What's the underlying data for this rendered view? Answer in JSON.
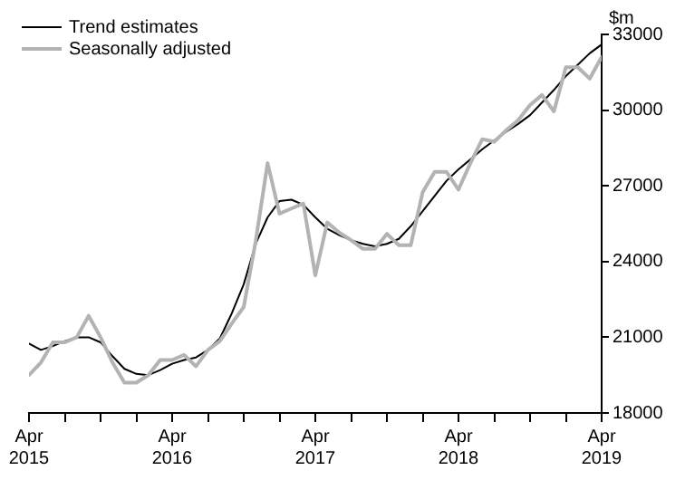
{
  "chart_data": {
    "type": "line",
    "ylabel": "$m",
    "x": [
      "2015-04",
      "2015-05",
      "2015-06",
      "2015-07",
      "2015-08",
      "2015-09",
      "2015-10",
      "2015-11",
      "2015-12",
      "2016-01",
      "2016-02",
      "2016-03",
      "2016-04",
      "2016-05",
      "2016-06",
      "2016-07",
      "2016-08",
      "2016-09",
      "2016-10",
      "2016-11",
      "2016-12",
      "2017-01",
      "2017-02",
      "2017-03",
      "2017-04",
      "2017-05",
      "2017-06",
      "2017-07",
      "2017-08",
      "2017-09",
      "2017-10",
      "2017-11",
      "2017-12",
      "2018-01",
      "2018-02",
      "2018-03",
      "2018-04",
      "2018-05",
      "2018-06",
      "2018-07",
      "2018-08",
      "2018-09",
      "2018-10",
      "2018-11",
      "2018-12",
      "2019-01",
      "2019-02",
      "2019-03",
      "2019-04"
    ],
    "series": [
      {
        "name": "Trend estimates",
        "color": "#000000",
        "values": [
          20750,
          20500,
          20650,
          20850,
          21000,
          21000,
          20800,
          20250,
          19750,
          19550,
          19500,
          19700,
          19950,
          20100,
          20200,
          20500,
          20950,
          21950,
          23100,
          24700,
          25750,
          26400,
          26450,
          26250,
          25750,
          25300,
          25050,
          24850,
          24700,
          24600,
          24700,
          24900,
          25400,
          26000,
          26600,
          27200,
          27650,
          28050,
          28450,
          28800,
          29150,
          29450,
          29800,
          30300,
          30800,
          31350,
          31800,
          32250,
          32600
        ]
      },
      {
        "name": "Seasonally adjusted",
        "color": "#b3b3b3",
        "values": [
          19500,
          20000,
          20800,
          20800,
          21000,
          21850,
          21000,
          20000,
          19200,
          19200,
          19500,
          20100,
          20100,
          20300,
          19850,
          20500,
          20850,
          21550,
          22200,
          24800,
          27900,
          25900,
          26100,
          26300,
          23450,
          25550,
          25150,
          24850,
          24500,
          24500,
          25100,
          24650,
          24650,
          26750,
          27550,
          27550,
          26850,
          27900,
          28850,
          28750,
          29200,
          29600,
          30200,
          30600,
          29950,
          31700,
          31700,
          31250,
          32100
        ]
      }
    ],
    "xlim": [
      "2015-04",
      "2019-04"
    ],
    "xticks": [
      {
        "value": "2015-04",
        "label": "Apr 2015"
      },
      {
        "value": "2015-07",
        "label": null
      },
      {
        "value": "2015-10",
        "label": null
      },
      {
        "value": "2016-01",
        "label": null
      },
      {
        "value": "2016-04",
        "label": "Apr 2016"
      },
      {
        "value": "2016-07",
        "label": null
      },
      {
        "value": "2016-10",
        "label": null
      },
      {
        "value": "2017-01",
        "label": null
      },
      {
        "value": "2017-04",
        "label": "Apr 2017"
      },
      {
        "value": "2017-07",
        "label": null
      },
      {
        "value": "2017-10",
        "label": null
      },
      {
        "value": "2018-01",
        "label": null
      },
      {
        "value": "2018-04",
        "label": "Apr 2018"
      },
      {
        "value": "2018-07",
        "label": null
      },
      {
        "value": "2018-10",
        "label": null
      },
      {
        "value": "2019-01",
        "label": null
      },
      {
        "value": "2019-04",
        "label": "Apr 2019"
      }
    ],
    "ylim": [
      18000,
      33000
    ],
    "yticks": [
      18000,
      21000,
      24000,
      27000,
      30000,
      33000
    ],
    "legend": "top left",
    "grid": false,
    "marker": "none",
    "line_style": "solid"
  }
}
